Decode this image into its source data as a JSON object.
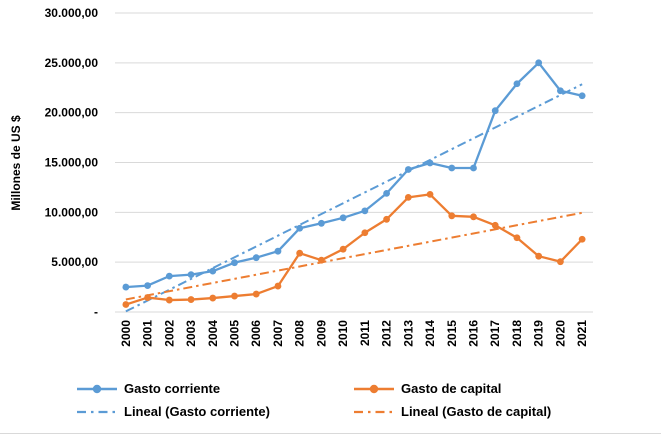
{
  "chart_data": {
    "type": "line",
    "title": "",
    "ylabel": "Millones de US $",
    "xlabel": "",
    "x_categories": [
      "2000",
      "2001",
      "2002",
      "2003",
      "2004",
      "2005",
      "2006",
      "2007",
      "2008",
      "2009",
      "2010",
      "2011",
      "2012",
      "2013",
      "2014",
      "2015",
      "2016",
      "2017",
      "2018",
      "2019",
      "2020",
      "2021"
    ],
    "y_ticks": [
      "30.000,00",
      "25.000,00",
      "20.000,00",
      "15.000,00",
      "10.000,00",
      "5.000,00",
      "-"
    ],
    "y_axis": {
      "min": 0,
      "max": 30000,
      "step": 5000
    },
    "grid": true,
    "legend_position": "bottom",
    "series": [
      {
        "name": "Gasto corriente",
        "color": "#5b9bd5",
        "values": [
          2500,
          2650,
          3600,
          3750,
          4100,
          4950,
          5450,
          6100,
          8400,
          8900,
          9450,
          10150,
          11900,
          14300,
          14950,
          14450,
          14450,
          20200,
          22900,
          25000,
          22200,
          21700
        ]
      },
      {
        "name": "Gasto de capital",
        "color": "#ed7d31",
        "values": [
          750,
          1450,
          1200,
          1250,
          1400,
          1600,
          1800,
          2600,
          5900,
          5200,
          6300,
          7950,
          9300,
          11500,
          11800,
          9650,
          9550,
          8700,
          7450,
          5600,
          5050,
          7300
        ]
      }
    ],
    "trendlines": [
      {
        "name": "Lineal (Gasto corriente)",
        "color": "#5b9bd5",
        "style": "dash-dot",
        "basis_series": 0
      },
      {
        "name": "Lineal (Gasto de capital)",
        "color": "#ed7d31",
        "style": "dash-dot",
        "basis_series": 1
      }
    ],
    "grid_color": "#d9d9d9",
    "text_color": "#000000"
  }
}
